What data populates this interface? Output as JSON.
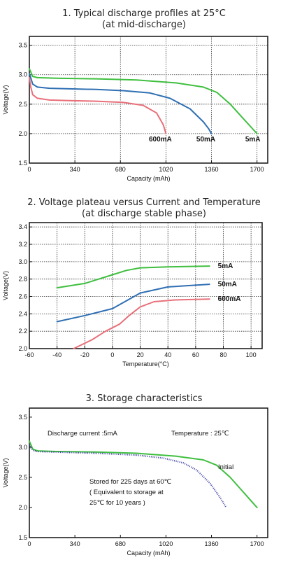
{
  "charts": [
    {
      "title_line1": "1. Typical discharge profiles at 25°C",
      "title_line2": "(at mid-discharge)",
      "xlabel": "Capacity (mAh)",
      "ylabel": "Voltage(V)"
    },
    {
      "title_line1": "2. Voltage plateau versus Current and Temperature",
      "title_line2": "(at discharge stable phase)",
      "xlabel": "Temperature(°C)",
      "ylabel": "Voltage(V)"
    },
    {
      "title_line1": "3. Storage characteristics",
      "title_line2": "",
      "xlabel": "Capacity (mAh)",
      "ylabel": "Voltage(V)",
      "note_current": "Discharge current :5mA",
      "note_temperature": "Temperature : 25℃",
      "note_storage_1": "Stored for 225 days at 60℃",
      "note_storage_2": "( Equivalent to storage at",
      "note_storage_3": "25℃ for 10 years    )"
    }
  ],
  "chart_data": [
    {
      "type": "line",
      "x_ticks": [
        0,
        340,
        680,
        1020,
        1360,
        1700
      ],
      "y_ticks": [
        "1.5",
        "2.0",
        "2.5",
        "3.0",
        "3.5"
      ],
      "xlim": [
        0,
        1780
      ],
      "ylim": [
        1.5,
        3.65
      ],
      "grid": true,
      "series": [
        {
          "name": "600mA",
          "color": "#e8707a",
          "x": [
            0,
            10,
            25,
            60,
            150,
            300,
            500,
            700,
            850,
            950,
            1000,
            1020
          ],
          "y": [
            2.95,
            2.8,
            2.66,
            2.6,
            2.57,
            2.56,
            2.55,
            2.53,
            2.48,
            2.35,
            2.15,
            2.0
          ]
        },
        {
          "name": "50mA",
          "color": "#2f6fb3",
          "x": [
            0,
            10,
            25,
            60,
            150,
            300,
            500,
            700,
            900,
            1050,
            1200,
            1300,
            1340,
            1360
          ],
          "y": [
            3.02,
            2.95,
            2.84,
            2.79,
            2.77,
            2.76,
            2.75,
            2.73,
            2.69,
            2.6,
            2.42,
            2.2,
            2.08,
            2.0
          ]
        },
        {
          "name": "5mA",
          "color": "#3fbf3f",
          "x": [
            0,
            10,
            25,
            60,
            200,
            500,
            800,
            1100,
            1300,
            1400,
            1500,
            1600,
            1660,
            1700
          ],
          "y": [
            3.1,
            3.05,
            2.97,
            2.95,
            2.94,
            2.93,
            2.91,
            2.86,
            2.79,
            2.7,
            2.5,
            2.25,
            2.1,
            2.0
          ]
        }
      ]
    },
    {
      "type": "line",
      "x_ticks": [
        -60,
        -40,
        -20,
        0,
        20,
        40,
        60,
        80,
        100
      ],
      "y_ticks": [
        "2.0",
        "2.2",
        "2.4",
        "2.6",
        "2.8",
        "3.0",
        "3.2",
        "3.4"
      ],
      "xlim": [
        -60,
        108
      ],
      "ylim": [
        2.0,
        3.45
      ],
      "grid": true,
      "series": [
        {
          "name": "5mA",
          "color": "#3fbf3f",
          "x": [
            -40,
            -20,
            0,
            10,
            20,
            40,
            70
          ],
          "y": [
            2.7,
            2.75,
            2.85,
            2.9,
            2.93,
            2.94,
            2.95
          ]
        },
        {
          "name": "50mA",
          "color": "#2f6fb3",
          "x": [
            -40,
            -20,
            0,
            10,
            20,
            40,
            70
          ],
          "y": [
            2.31,
            2.38,
            2.46,
            2.55,
            2.64,
            2.71,
            2.74
          ]
        },
        {
          "name": "600mA",
          "color": "#e8707a",
          "x": [
            -28,
            -15,
            -5,
            5,
            12,
            20,
            30,
            45,
            70
          ],
          "y": [
            2.0,
            2.1,
            2.2,
            2.28,
            2.38,
            2.48,
            2.54,
            2.56,
            2.57
          ]
        }
      ]
    },
    {
      "type": "line",
      "x_ticks": [
        0,
        340,
        680,
        1020,
        1360,
        1700
      ],
      "y_ticks": [
        "1.5",
        "2.0",
        "2.5",
        "3.0",
        "3.5"
      ],
      "xlim": [
        0,
        1780
      ],
      "ylim": [
        1.5,
        3.65
      ],
      "grid": false,
      "series": [
        {
          "name": "Initial",
          "color": "#3fbf3f",
          "x": [
            0,
            10,
            25,
            60,
            200,
            500,
            800,
            1100,
            1300,
            1400,
            1500,
            1600,
            1660,
            1700
          ],
          "y": [
            3.1,
            3.05,
            2.97,
            2.94,
            2.93,
            2.92,
            2.9,
            2.85,
            2.79,
            2.7,
            2.5,
            2.25,
            2.1,
            2.0
          ]
        },
        {
          "name": "Stored for 225 days at 60℃",
          "color": "#3a3d9e",
          "dotted": true,
          "x": [
            0,
            10,
            25,
            60,
            200,
            500,
            800,
            1000,
            1150,
            1250,
            1350,
            1420,
            1470
          ],
          "y": [
            3.05,
            3.0,
            2.95,
            2.93,
            2.92,
            2.9,
            2.87,
            2.82,
            2.74,
            2.62,
            2.4,
            2.18,
            2.0
          ]
        }
      ]
    }
  ]
}
